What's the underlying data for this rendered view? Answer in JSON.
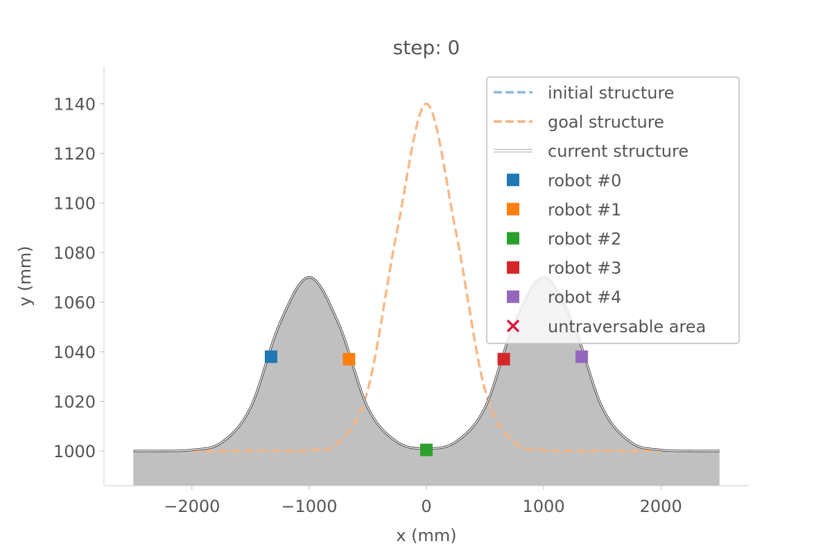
{
  "chart_data": {
    "type": "line",
    "title": "step: 0",
    "xlabel": "x (mm)",
    "ylabel": "y (mm)",
    "xlim": [
      -2750,
      2750
    ],
    "ylim": [
      986,
      1155
    ],
    "xticks": [
      -2000,
      -1000,
      0,
      1000,
      2000
    ],
    "xtick_labels": [
      "−2000",
      "−1000",
      "0",
      "1000",
      "2000"
    ],
    "yticks": [
      1000,
      1020,
      1040,
      1060,
      1080,
      1100,
      1120,
      1140
    ],
    "ytick_labels": [
      "1000",
      "1020",
      "1040",
      "1060",
      "1080",
      "1100",
      "1120",
      "1140"
    ],
    "grid": false,
    "legend_position": "top-right",
    "series": [
      {
        "name": "initial structure",
        "style": "dashed",
        "color": "#8fb9dc",
        "x": [
          -2500,
          -2250,
          -2000,
          -1750,
          -1500,
          -1250,
          -1000,
          -750,
          -500,
          -250,
          0,
          250,
          500,
          750,
          1000,
          1250,
          1500,
          1750,
          2000,
          2250,
          2500
        ],
        "y": [
          1000,
          1000,
          1000.4,
          1003.3,
          1017.5,
          1051.5,
          1070,
          1051.5,
          1017.5,
          1003.6,
          1001,
          1003.6,
          1017.5,
          1051.5,
          1070,
          1051.5,
          1017.5,
          1003.3,
          1000.4,
          1000,
          1000
        ]
      },
      {
        "name": "goal structure",
        "style": "dashed",
        "color": "#f8b47f",
        "x": [
          -2000,
          -1750,
          -1500,
          -1250,
          -1000,
          -750,
          -500,
          -250,
          0,
          250,
          500,
          750,
          1000,
          1250,
          1500,
          1750,
          2000
        ],
        "y": [
          1000,
          1000,
          1000,
          1000,
          1000.3,
          1003.4,
          1024.6,
          1088.8,
          1140,
          1088.8,
          1024.6,
          1003.4,
          1000.3,
          1000,
          1000,
          1000,
          1000
        ]
      },
      {
        "name": "current structure",
        "style": "solid",
        "color": "#ffffff",
        "x": [
          -2500,
          -2250,
          -2000,
          -1750,
          -1500,
          -1250,
          -1000,
          -750,
          -500,
          -250,
          0,
          250,
          500,
          750,
          1000,
          1250,
          1500,
          1750,
          2000,
          2250,
          2500
        ],
        "y": [
          1000,
          1000,
          1000.4,
          1003.3,
          1017.5,
          1051.5,
          1070,
          1051.5,
          1017.5,
          1003.6,
          1001,
          1003.6,
          1017.5,
          1051.5,
          1070,
          1051.5,
          1017.5,
          1003.3,
          1000.4,
          1000,
          1000
        ]
      }
    ],
    "filled_structure": {
      "color": "#c0c0c0",
      "base": 986,
      "x": [
        -2500,
        -2250,
        -2000,
        -1750,
        -1500,
        -1250,
        -1000,
        -750,
        -500,
        -250,
        0,
        250,
        500,
        750,
        1000,
        1250,
        1500,
        1750,
        2000,
        2250,
        2500
      ],
      "y": [
        1000,
        1000,
        1000.4,
        1003.3,
        1017.5,
        1051.5,
        1070,
        1051.5,
        1017.5,
        1003.6,
        1001,
        1003.6,
        1017.5,
        1051.5,
        1070,
        1051.5,
        1017.5,
        1003.3,
        1000.4,
        1000,
        1000
      ]
    },
    "robots": [
      {
        "name": "robot #0",
        "color": "#1f77b4",
        "x": -1325,
        "y": 1038
      },
      {
        "name": "robot #1",
        "color": "#ff7f0e",
        "x": -660,
        "y": 1037
      },
      {
        "name": "robot #2",
        "color": "#2ca02c",
        "x": 0,
        "y": 1000.4
      },
      {
        "name": "robot #3",
        "color": "#d62728",
        "x": 660,
        "y": 1037
      },
      {
        "name": "robot #4",
        "color": "#9467bd",
        "x": 1325,
        "y": 1038
      }
    ],
    "untraversable": {
      "name": "untraversable area",
      "color": "#dc143c",
      "points": []
    },
    "legend": [
      {
        "label": "initial structure",
        "marker": "dashed-line",
        "color": "#8fb9dc"
      },
      {
        "label": "goal structure",
        "marker": "dashed-line",
        "color": "#f8b47f"
      },
      {
        "label": "current structure",
        "marker": "solid-line",
        "color": "#ffffff"
      },
      {
        "label": "robot #0",
        "marker": "square",
        "color": "#1f77b4"
      },
      {
        "label": "robot #1",
        "marker": "square",
        "color": "#ff7f0e"
      },
      {
        "label": "robot #2",
        "marker": "square",
        "color": "#2ca02c"
      },
      {
        "label": "robot #3",
        "marker": "square",
        "color": "#d62728"
      },
      {
        "label": "robot #4",
        "marker": "square",
        "color": "#9467bd"
      },
      {
        "label": "untraversable area",
        "marker": "x",
        "color": "#dc143c"
      }
    ]
  }
}
